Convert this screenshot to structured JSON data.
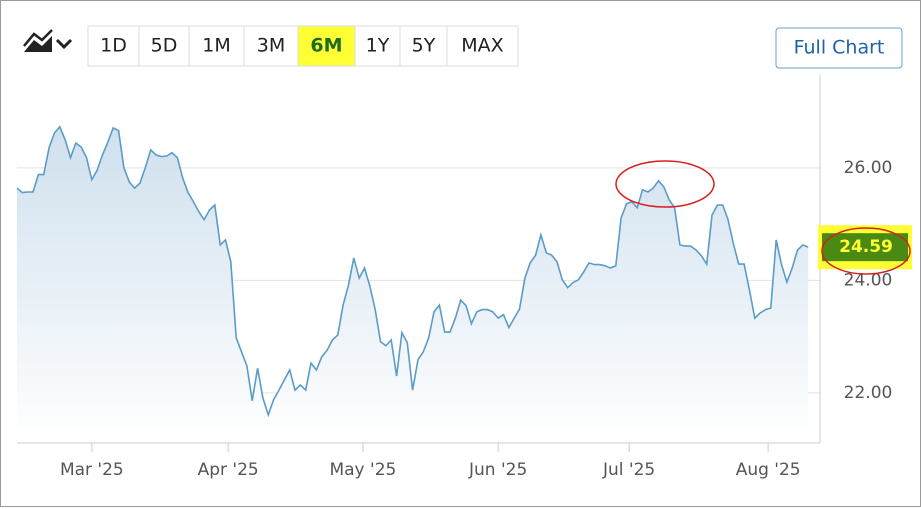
{
  "chart_data": {
    "type": "line",
    "ranges": [
      "1D",
      "5D",
      "1M",
      "3M",
      "6M",
      "1Y",
      "5Y",
      "MAX"
    ],
    "selected_range": "6M",
    "full_chart": "Full Chart",
    "x": [
      0,
      1,
      2,
      3,
      4,
      5,
      6,
      7,
      8,
      9,
      10,
      11,
      12,
      13,
      14,
      15,
      16,
      17,
      18,
      19,
      20,
      21,
      22,
      23,
      24,
      25,
      26,
      27,
      28,
      29,
      30,
      31,
      32,
      33,
      34,
      35,
      36,
      37,
      38,
      39,
      40,
      41,
      42,
      43,
      44,
      45,
      46,
      47,
      48,
      49,
      50,
      51,
      52,
      53,
      54,
      55,
      56,
      57,
      58,
      59,
      60,
      61,
      62,
      63,
      64,
      65,
      66,
      67,
      68,
      69,
      70,
      71,
      72,
      73,
      74,
      75,
      76,
      77,
      78,
      79,
      80,
      81,
      82,
      83,
      84,
      85,
      86,
      87,
      88,
      89,
      90,
      91,
      92,
      93,
      94,
      95,
      96,
      97,
      98,
      99,
      100,
      101,
      102,
      103,
      104,
      105,
      106,
      107,
      108,
      109,
      110,
      111,
      112,
      113,
      114,
      115,
      116,
      117,
      118,
      119,
      120,
      121,
      122,
      123,
      124,
      125,
      126,
      127,
      128,
      129,
      130,
      131,
      132,
      133,
      134,
      135,
      136,
      137,
      138,
      139,
      140,
      141,
      142,
      143,
      144,
      145,
      146,
      147,
      148
    ],
    "values": [
      25.64,
      25.56,
      25.57,
      25.57,
      25.88,
      25.88,
      26.36,
      26.62,
      26.73,
      26.5,
      26.18,
      26.44,
      26.37,
      26.18,
      25.79,
      25.96,
      26.23,
      26.46,
      26.71,
      26.66,
      26.0,
      25.75,
      25.64,
      25.73,
      26.0,
      26.32,
      26.23,
      26.2,
      26.21,
      26.27,
      26.18,
      25.82,
      25.56,
      25.4,
      25.22,
      25.08,
      25.25,
      25.34,
      24.63,
      24.72,
      24.33,
      22.98,
      22.73,
      22.48,
      21.86,
      22.44,
      21.91,
      21.61,
      21.88,
      22.05,
      22.23,
      22.41,
      22.05,
      22.14,
      22.05,
      22.53,
      22.41,
      22.64,
      22.76,
      22.94,
      23.03,
      23.56,
      23.92,
      24.4,
      24.04,
      24.22,
      23.9,
      23.48,
      22.91,
      22.84,
      22.94,
      22.3,
      23.07,
      22.89,
      22.05,
      22.59,
      22.73,
      22.98,
      23.44,
      23.56,
      23.08,
      23.08,
      23.33,
      23.65,
      23.55,
      23.23,
      23.44,
      23.48,
      23.48,
      23.44,
      23.33,
      23.39,
      23.16,
      23.33,
      23.49,
      24.04,
      24.31,
      24.45,
      24.81,
      24.49,
      24.45,
      24.33,
      24.01,
      23.87,
      23.96,
      24.01,
      24.15,
      24.31,
      24.28,
      24.28,
      24.26,
      24.22,
      24.26,
      25.11,
      25.36,
      25.4,
      25.29,
      25.61,
      25.57,
      25.64,
      25.77,
      25.66,
      25.43,
      25.29,
      24.63,
      24.61,
      24.61,
      24.54,
      24.44,
      24.29,
      25.16,
      25.34,
      25.34,
      25.08,
      24.65,
      24.29,
      24.29,
      23.83,
      23.33,
      23.42,
      23.48,
      23.51,
      24.72,
      24.28,
      23.97,
      24.22,
      24.54,
      24.63,
      24.59
    ],
    "color": "#5b9bc8",
    "last_price": 24.59,
    "xlim": [
      0,
      150.2
    ],
    "xticks": [
      {
        "value": 14,
        "label": "Mar '25"
      },
      {
        "value": 39.5,
        "label": "Apr '25"
      },
      {
        "value": 64.7,
        "label": "May '25"
      },
      {
        "value": 90,
        "label": "Jun '25"
      },
      {
        "value": 114.5,
        "label": "Jul '25"
      },
      {
        "value": 140.5,
        "label": "Aug '25"
      }
    ],
    "ylim": [
      21.11,
      27.65
    ],
    "yticks": [
      {
        "value": 22,
        "label": "22.00"
      },
      {
        "value": 24,
        "label": "24.00"
      },
      {
        "value": 26,
        "label": "26.00"
      }
    ],
    "grid": true
  }
}
